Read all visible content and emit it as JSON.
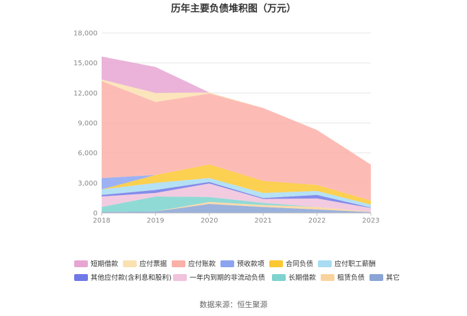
{
  "chart_data": {
    "type": "area",
    "stacked": true,
    "title": "历年主要负债堆积图（万元）",
    "source": "数据来源：恒生聚源",
    "x": [
      "2018",
      "2019",
      "2020",
      "2021",
      "2022",
      "2023"
    ],
    "yticks": [
      "0",
      "3,000",
      "6,000",
      "9,000",
      "12,000",
      "15,000",
      "18,000"
    ],
    "ylim": [
      0,
      18000
    ],
    "grid": true,
    "legend_position": "bottom",
    "series": [
      {
        "name": "其它",
        "color": "#8aa4d6",
        "values": [
          100,
          150,
          900,
          600,
          350,
          80
        ]
      },
      {
        "name": "租赁负债",
        "color": "#f9d39c",
        "values": [
          0,
          0,
          200,
          200,
          250,
          40
        ]
      },
      {
        "name": "长期借款",
        "color": "#7dd3cf",
        "values": [
          500,
          1500,
          500,
          200,
          0,
          0
        ]
      },
      {
        "name": "一年内到期的非流动负债",
        "color": "#f0c2dc",
        "values": [
          1050,
          350,
          1350,
          400,
          850,
          380
        ]
      },
      {
        "name": "其他应付款(含利息和股利)",
        "color": "#6f78e6",
        "values": [
          150,
          300,
          150,
          100,
          350,
          40
        ]
      },
      {
        "name": "应付职工薪酬",
        "color": "#a8dcf2",
        "values": [
          550,
          700,
          400,
          500,
          400,
          300
        ]
      },
      {
        "name": "合同负债",
        "color": "#fcc832",
        "values": [
          0,
          800,
          1350,
          1200,
          600,
          400
        ]
      },
      {
        "name": "预收款项",
        "color": "#8ca4f0",
        "values": [
          1150,
          0,
          0,
          0,
          0,
          0
        ]
      },
      {
        "name": "应付账款",
        "color": "#fbb0a8",
        "values": [
          9700,
          7300,
          7100,
          7300,
          5500,
          3600
        ]
      },
      {
        "name": "应付票据",
        "color": "#fbe0b0",
        "values": [
          150,
          900,
          100,
          0,
          0,
          0
        ]
      },
      {
        "name": "短期借款",
        "color": "#e7a6d2",
        "values": [
          2300,
          2600,
          0,
          0,
          0,
          0
        ]
      }
    ],
    "legend_order": [
      "短期借款",
      "应付票据",
      "应付账款",
      "预收款项",
      "合同负债",
      "应付职工薪酬",
      "其他应付款(含利息和股利)",
      "一年内到期的非流动负债",
      "长期借款",
      "租赁负债",
      "其它"
    ]
  }
}
